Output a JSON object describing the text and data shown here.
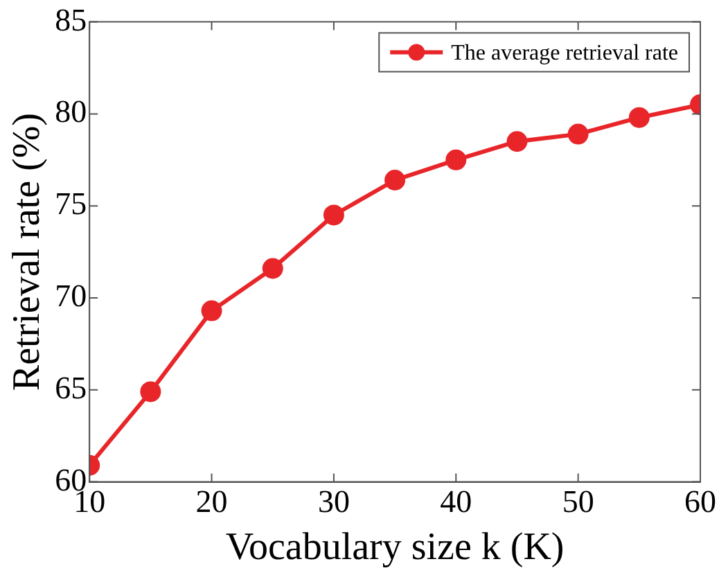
{
  "chart_data": {
    "type": "line",
    "xlabel": "Vocabulary size k (K)",
    "ylabel": "Retrieval rate (%)",
    "x": [
      10,
      15,
      20,
      25,
      30,
      35,
      40,
      45,
      50,
      55,
      60
    ],
    "series": [
      {
        "name": "The average retrieval rate",
        "color": "#e8262a",
        "values": [
          60.9,
          64.9,
          69.3,
          71.6,
          74.5,
          76.4,
          77.5,
          78.5,
          78.9,
          79.8,
          80.5
        ]
      }
    ],
    "xlim": [
      10,
      60
    ],
    "xticks": [
      10,
      20,
      30,
      40,
      50,
      60
    ],
    "ylim": [
      60,
      85
    ],
    "yticks": [
      60,
      65,
      70,
      75,
      80,
      85
    ],
    "grid": false,
    "legend": "top right",
    "marker": "circle",
    "line_style": "solid"
  }
}
